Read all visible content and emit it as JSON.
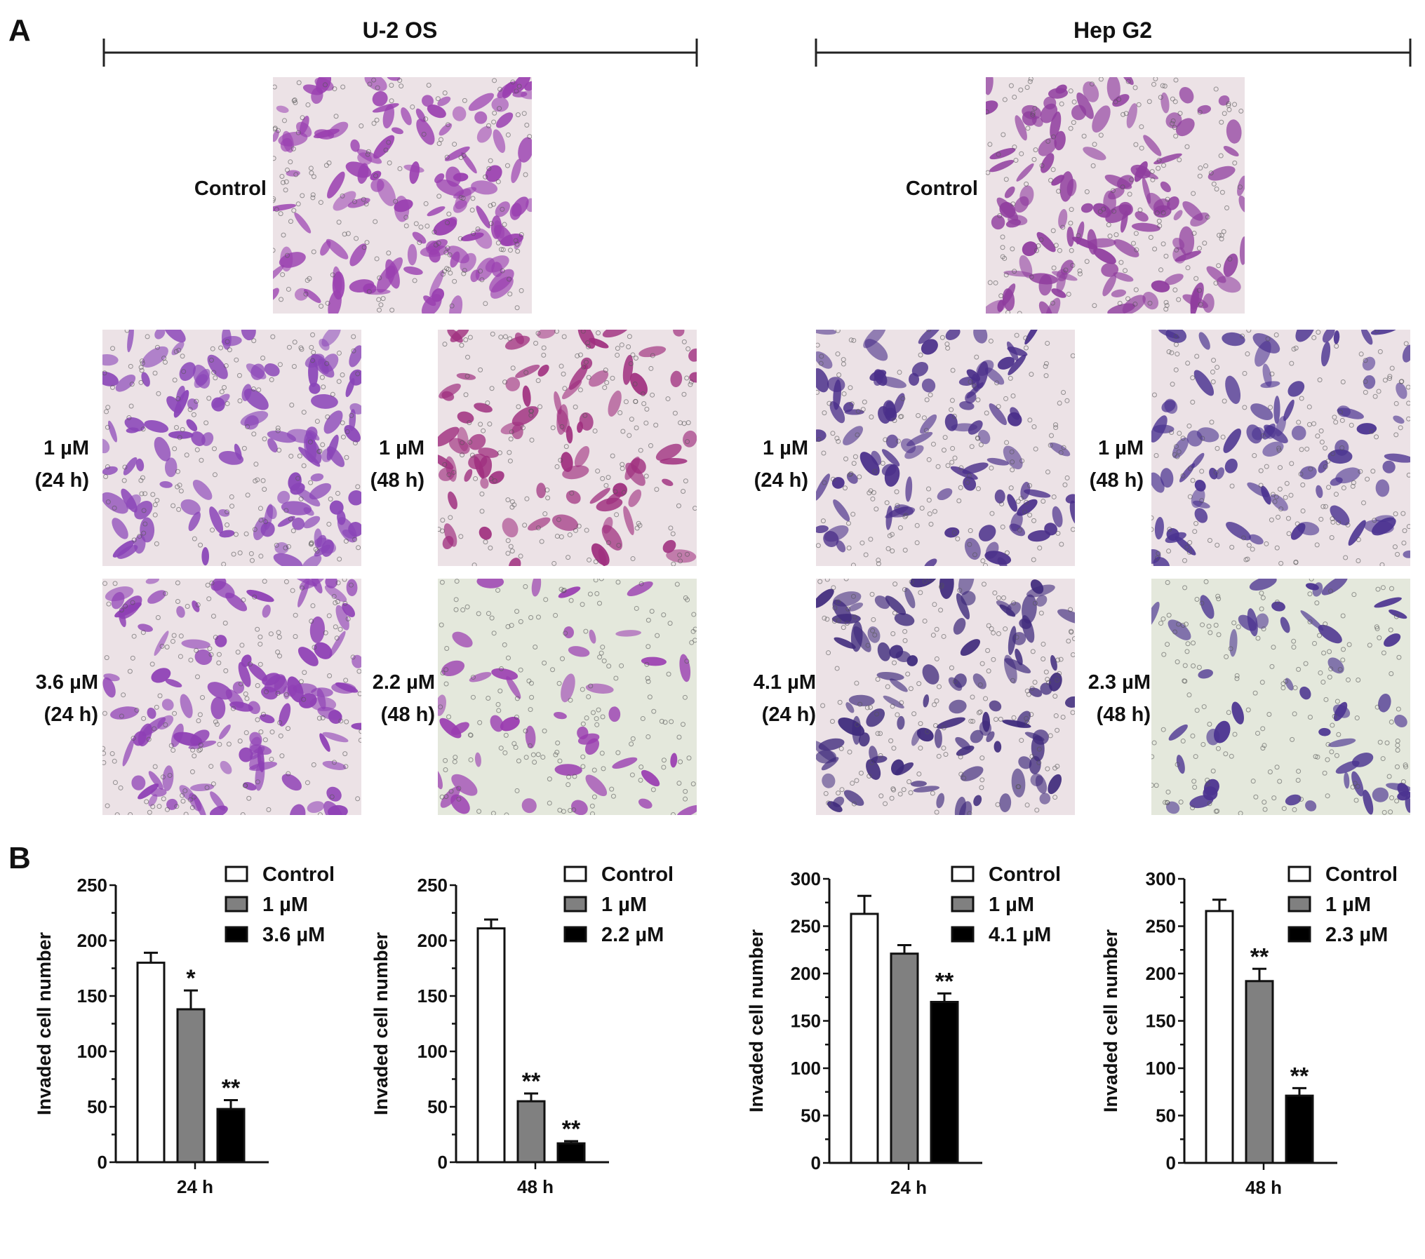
{
  "panel_labels": {
    "a": "A",
    "b": "B"
  },
  "groups": [
    {
      "title": "U-2 OS"
    },
    {
      "title": "Hep G2"
    }
  ],
  "micrographs": [
    {
      "group": "U-2 OS",
      "label_line1": "Control",
      "label_line2": "",
      "stain": "#9a3fb0",
      "density": 0.9
    },
    {
      "group": "U-2 OS",
      "label_line1": "1 µM",
      "label_line2": "(24 h)",
      "stain": "#8a45b8",
      "density": 0.85
    },
    {
      "group": "U-2 OS",
      "label_line1": "1 µM",
      "label_line2": "(48 h)",
      "stain": "#a0307f",
      "density": 0.6
    },
    {
      "group": "U-2 OS",
      "label_line1": "3.6 µM",
      "label_line2": "(24 h)",
      "stain": "#8e3fb5",
      "density": 0.8
    },
    {
      "group": "U-2 OS",
      "label_line1": "2.2 µM",
      "label_line2": "(48 h)",
      "stain": "#9a3cb0",
      "density": 0.3
    },
    {
      "group": "Hep G2",
      "label_line1": "Control",
      "label_line2": "",
      "stain": "#8f3c9e",
      "density": 0.85
    },
    {
      "group": "Hep G2",
      "label_line1": "1 µM",
      "label_line2": "(24 h)",
      "stain": "#4a2f8a",
      "density": 0.7
    },
    {
      "group": "Hep G2",
      "label_line1": "1 µM",
      "label_line2": "(48 h)",
      "stain": "#4a3290",
      "density": 0.6
    },
    {
      "group": "Hep G2",
      "label_line1": "4.1 µM",
      "label_line2": "(24 h)",
      "stain": "#3f2a7c",
      "density": 0.75
    },
    {
      "group": "Hep G2",
      "label_line1": "2.3 µM",
      "label_line2": "(48 h)",
      "stain": "#4b3390",
      "density": 0.35
    }
  ],
  "chart_data": [
    {
      "type": "bar",
      "xlabel": "24 h",
      "ylabel": "Invaded cell number",
      "ylim": [
        0,
        250
      ],
      "yticks": [
        "0",
        "50",
        "100",
        "150",
        "200",
        "250"
      ],
      "ytick_values": [
        0,
        50,
        100,
        150,
        200,
        250
      ],
      "series": [
        {
          "name": "Control",
          "value": 180,
          "error": 9,
          "sig": "",
          "color": "#ffffff"
        },
        {
          "name": "1 µM",
          "value": 138,
          "error": 17,
          "sig": "*",
          "color": "#808080"
        },
        {
          "name": "3.6 µM",
          "value": 48,
          "error": 8,
          "sig": "**",
          "color": "#000000"
        }
      ]
    },
    {
      "type": "bar",
      "xlabel": "48 h",
      "ylabel": "Invaded cell number",
      "ylim": [
        0,
        250
      ],
      "yticks": [
        "0",
        "50",
        "100",
        "150",
        "200",
        "250"
      ],
      "ytick_values": [
        0,
        50,
        100,
        150,
        200,
        250
      ],
      "series": [
        {
          "name": "Control",
          "value": 211,
          "error": 8,
          "sig": "",
          "color": "#ffffff"
        },
        {
          "name": "1 µM",
          "value": 55,
          "error": 7,
          "sig": "**",
          "color": "#808080"
        },
        {
          "name": "2.2 µM",
          "value": 17,
          "error": 2,
          "sig": "**",
          "color": "#000000"
        }
      ]
    },
    {
      "type": "bar",
      "xlabel": "24 h",
      "ylabel": "Invaded cell number",
      "ylim": [
        0,
        300
      ],
      "yticks": [
        "0",
        "50",
        "100",
        "150",
        "200",
        "250",
        "300"
      ],
      "ytick_values": [
        0,
        50,
        100,
        150,
        200,
        250,
        300
      ],
      "series": [
        {
          "name": "Control",
          "value": 263,
          "error": 19,
          "sig": "",
          "color": "#ffffff"
        },
        {
          "name": "1 µM",
          "value": 221,
          "error": 9,
          "sig": "",
          "color": "#808080"
        },
        {
          "name": "4.1 µM",
          "value": 170,
          "error": 9,
          "sig": "**",
          "color": "#000000"
        }
      ]
    },
    {
      "type": "bar",
      "xlabel": "48 h",
      "ylabel": "Invaded cell number",
      "ylim": [
        0,
        300
      ],
      "yticks": [
        "0",
        "50",
        "100",
        "150",
        "200",
        "250",
        "300"
      ],
      "ytick_values": [
        0,
        50,
        100,
        150,
        200,
        250,
        300
      ],
      "series": [
        {
          "name": "Control",
          "value": 266,
          "error": 12,
          "sig": "",
          "color": "#ffffff"
        },
        {
          "name": "1 µM",
          "value": 192,
          "error": 13,
          "sig": "**",
          "color": "#808080"
        },
        {
          "name": "2.3 µM",
          "value": 71,
          "error": 8,
          "sig": "**",
          "color": "#000000"
        }
      ]
    }
  ]
}
